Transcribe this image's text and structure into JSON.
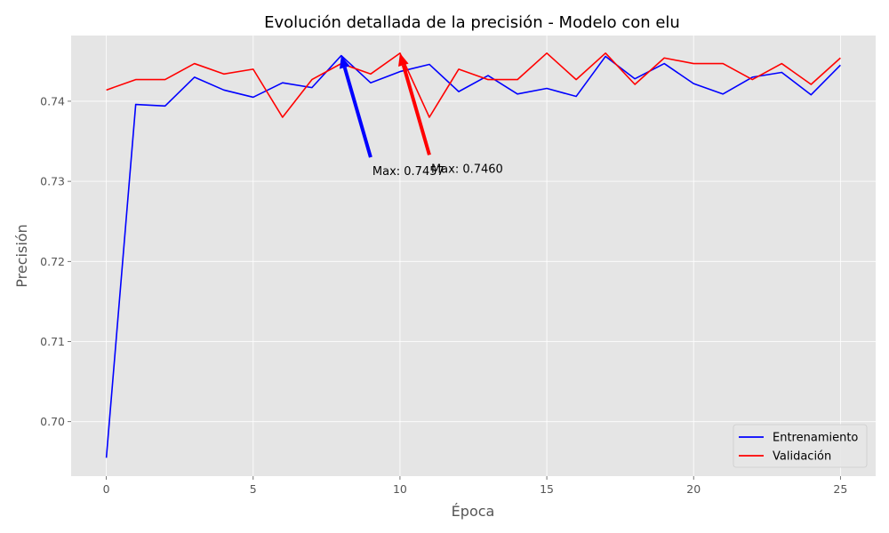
{
  "chart_data": {
    "type": "line",
    "title": "Evolución detallada de la precisión - Modelo con elu",
    "xlabel": "Época",
    "ylabel": "Precisión",
    "xlim": [
      -1.2,
      26.2
    ],
    "ylim": [
      0.6932,
      0.7482
    ],
    "xticks": [
      0,
      5,
      10,
      15,
      20,
      25
    ],
    "yticks": [
      0.7,
      0.71,
      0.72,
      0.73,
      0.74
    ],
    "ytick_labels": [
      "0.70",
      "0.71",
      "0.72",
      "0.73",
      "0.74"
    ],
    "grid": true,
    "legend_position": "lower-right",
    "x": [
      0,
      1,
      2,
      3,
      4,
      5,
      6,
      7,
      8,
      9,
      10,
      11,
      12,
      13,
      14,
      15,
      16,
      17,
      18,
      19,
      20,
      21,
      22,
      23,
      24,
      25
    ],
    "series": [
      {
        "name": "Entrenamiento",
        "color": "#0000ff",
        "values": [
          0.6955,
          0.7396,
          0.7394,
          0.743,
          0.7414,
          0.7405,
          0.7423,
          0.7417,
          0.7457,
          0.7423,
          0.7437,
          0.7446,
          0.7412,
          0.7432,
          0.7409,
          0.7416,
          0.7406,
          0.7456,
          0.7428,
          0.7447,
          0.7422,
          0.7409,
          0.743,
          0.7436,
          0.7408,
          0.7445
        ]
      },
      {
        "name": "Validación",
        "color": "#ff0000",
        "values": [
          0.7414,
          0.7427,
          0.7427,
          0.7447,
          0.7434,
          0.744,
          0.738,
          0.7427,
          0.7447,
          0.7434,
          0.746,
          0.738,
          0.744,
          0.7427,
          0.7427,
          0.746,
          0.7427,
          0.746,
          0.7421,
          0.7454,
          0.7447,
          0.7447,
          0.7427,
          0.7447,
          0.7421,
          0.7454
        ]
      }
    ],
    "annotations": [
      {
        "text": "Max: 0.7457",
        "color": "#0000ff",
        "point": [
          8,
          0.7457
        ],
        "text_at": [
          9,
          0.733
        ]
      },
      {
        "text": "Max: 0.7460",
        "color": "#ff0000",
        "point": [
          10,
          0.746
        ],
        "text_at": [
          11,
          0.7333
        ]
      }
    ],
    "colors": {
      "plot_background": "#e5e5e5",
      "grid": "#ffffff",
      "axis_text": "#555555"
    }
  }
}
